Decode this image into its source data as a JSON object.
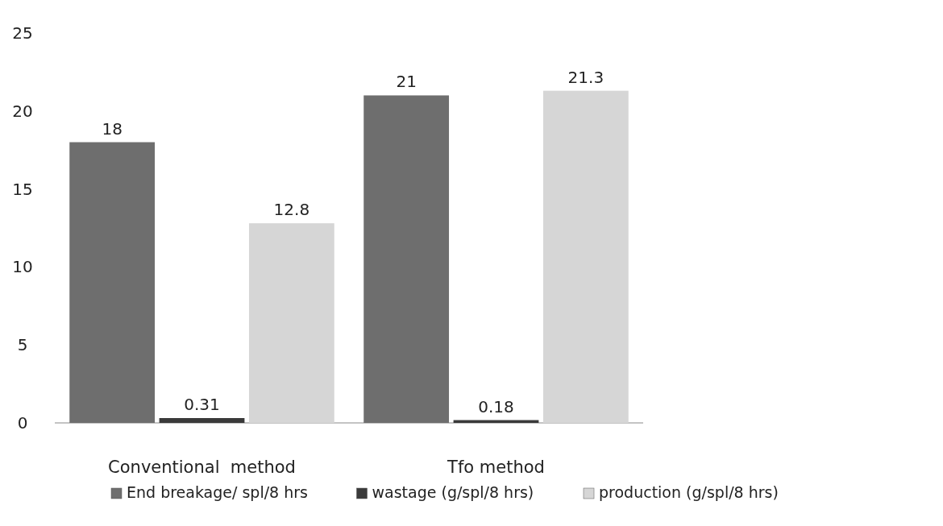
{
  "chart_data": {
    "type": "bar",
    "categories": [
      "Conventional  method",
      "Tfo method"
    ],
    "series": [
      {
        "name": "End breakage/ spl/8 hrs",
        "color": "#6e6e6e",
        "values": [
          18,
          21
        ]
      },
      {
        "name": "wastage (g/spl/8 hrs)",
        "color": "#3a3a3a",
        "values": [
          0.31,
          0.18
        ]
      },
      {
        "name": "production  (g/spl/8 hrs)",
        "color": "#d6d6d6",
        "values": [
          12.8,
          21.3
        ]
      }
    ],
    "ylim": [
      0,
      25
    ],
    "yticks": [
      0,
      5,
      10,
      15,
      20,
      25
    ],
    "data_labels": true,
    "legend": "bottom",
    "grid": false
  }
}
